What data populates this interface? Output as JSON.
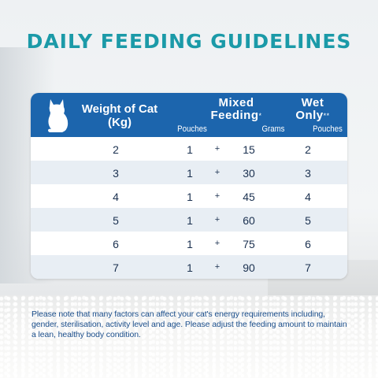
{
  "title": "DAILY FEEDING GUIDELINES",
  "table": {
    "header": {
      "weight_line1": "Weight of Cat",
      "weight_line2": "(Kg)",
      "mixed_line1": "Mixed",
      "mixed_line2": "Feeding",
      "mixed_mark": "*",
      "wet_line1": "Wet",
      "wet_line2": "Only",
      "wet_mark": "**",
      "sub_pouches_mixed": "Pouches",
      "sub_grams": "Grams",
      "sub_pouches_wet": "Pouches"
    },
    "rows": [
      {
        "weight": "2",
        "pouches": "1",
        "plus": "+",
        "grams": "15",
        "wet_pouches": "2"
      },
      {
        "weight": "3",
        "pouches": "1",
        "plus": "+",
        "grams": "30",
        "wet_pouches": "3"
      },
      {
        "weight": "4",
        "pouches": "1",
        "plus": "+",
        "grams": "45",
        "wet_pouches": "4"
      },
      {
        "weight": "5",
        "pouches": "1",
        "plus": "+",
        "grams": "60",
        "wet_pouches": "5"
      },
      {
        "weight": "6",
        "pouches": "1",
        "plus": "+",
        "grams": "75",
        "wet_pouches": "6"
      },
      {
        "weight": "7",
        "pouches": "1",
        "plus": "+",
        "grams": "90",
        "wet_pouches": "7"
      }
    ]
  },
  "footnote": "Please note that many factors can affect your cat's energy requirements including, gender, sterilisation, activity level and age. Please adjust the feeding amount to maintain a lean, healthy body condition.",
  "colors": {
    "title": "#1b9aa8",
    "header_bg": "#1c65ad",
    "row_alt": "#e8eef4",
    "footnote": "#1c4f8c"
  },
  "icons": {
    "header_icon": "cat-silhouette-icon"
  }
}
